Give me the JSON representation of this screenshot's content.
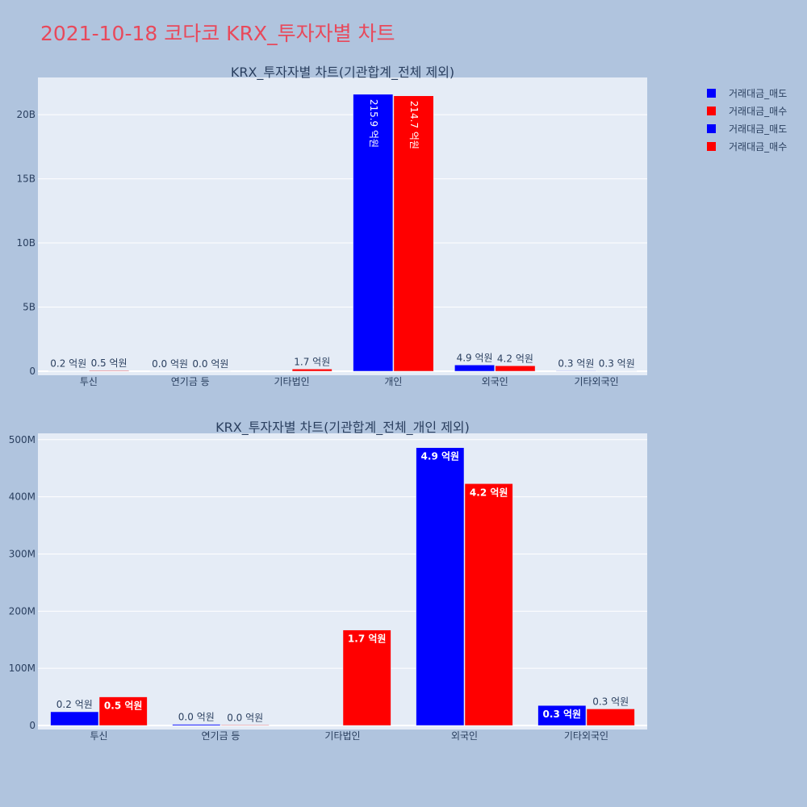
{
  "page": {
    "title": "2021-10-18 코다코 KRX_투자자별 차트"
  },
  "colors": {
    "sell": "#0000ff",
    "buy": "#ff0000",
    "plot_bg": "#e5ecf6",
    "page_bg": "#b0c4de",
    "text": "#2a3f5f"
  },
  "legend": {
    "items": [
      {
        "label": "거래대금_매도",
        "color": "#0000ff"
      },
      {
        "label": "거래대금_매수",
        "color": "#ff0000"
      },
      {
        "label": "거래대금_매도",
        "color": "#0000ff"
      },
      {
        "label": "거래대금_매수",
        "color": "#ff0000"
      }
    ]
  },
  "chart_data": [
    {
      "type": "bar",
      "title": "KRX_투자자별 차트(기관합계_전체 제외)",
      "categories": [
        "투신",
        "연기금 등",
        "기타법인",
        "개인",
        "외국인",
        "기타외국인"
      ],
      "series": [
        {
          "name": "거래대금_매도",
          "color": "#0000ff",
          "values": [
            24000000,
            2000000,
            0,
            21590000000,
            486000000,
            35000000
          ],
          "labels": [
            "0.2 억원",
            "0.0 억원",
            "",
            "215.9 억원",
            "4.9 억원",
            "0.3 억원"
          ]
        },
        {
          "name": "거래대금_매수",
          "color": "#ff0000",
          "values": [
            50000000,
            1000000,
            167000000,
            21470000000,
            423000000,
            29000000
          ],
          "labels": [
            "0.5 억원",
            "0.0 억원",
            "1.7 억원",
            "214.7 억원",
            "4.2 억원",
            "0.3 억원"
          ]
        }
      ],
      "ylim": [
        0,
        22900000000
      ],
      "yticks": [
        0,
        5000000000,
        10000000000,
        15000000000,
        20000000000
      ],
      "ytick_labels": [
        "0",
        "5B",
        "10B",
        "15B",
        "20B"
      ],
      "grid": true,
      "legend": "top-right"
    },
    {
      "type": "bar",
      "title": "KRX_투자자별 차트(기관합계_전체_개인 제외)",
      "categories": [
        "투신",
        "연기금 등",
        "기타법인",
        "외국인",
        "기타외국인"
      ],
      "series": [
        {
          "name": "거래대금_매도",
          "color": "#0000ff",
          "values": [
            24000000,
            2000000,
            0,
            486000000,
            35000000
          ],
          "labels": [
            "0.2 억원",
            "0.0 억원",
            "",
            "4.9 억원",
            "0.3 억원"
          ]
        },
        {
          "name": "거래대금_매수",
          "color": "#ff0000",
          "values": [
            50000000,
            1000000,
            167000000,
            423000000,
            29000000
          ],
          "labels": [
            "0.5 억원",
            "0.0 억원",
            "1.7 억원",
            "4.2 억원",
            "0.3 억원"
          ]
        }
      ],
      "ylim": [
        0,
        511000000
      ],
      "yticks": [
        0,
        100000000,
        200000000,
        300000000,
        400000000,
        500000000
      ],
      "ytick_labels": [
        "0",
        "100M",
        "200M",
        "300M",
        "400M",
        "500M"
      ],
      "grid": true,
      "legend": "top-right"
    }
  ]
}
